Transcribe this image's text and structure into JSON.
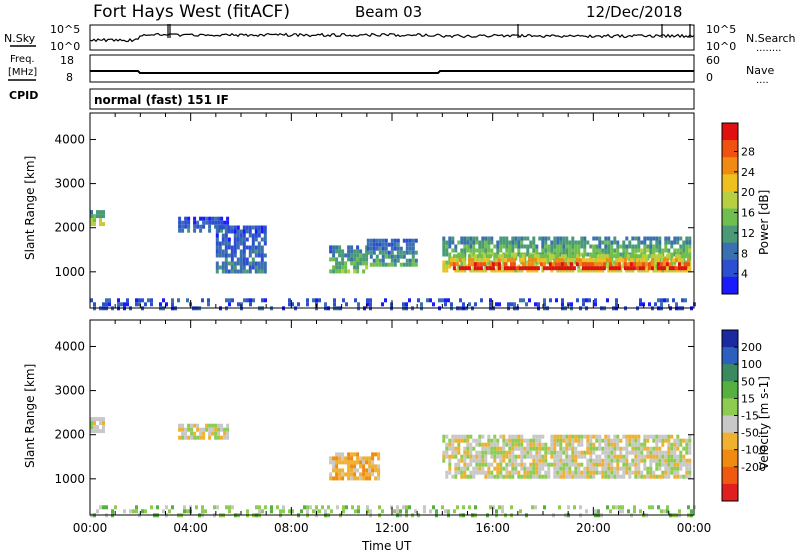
{
  "header": {
    "station": "Fort Hays West (fitACF)",
    "beam": "Beam 03",
    "date": "12/Dec/2018"
  },
  "top_panel": {
    "left_label": "N.Sky",
    "right_label": "N.Search",
    "right_marker": "........",
    "left_ticks": [
      "10^5",
      "10^0"
    ],
    "right_ticks": [
      "10^5",
      "10^0"
    ]
  },
  "freq_panel": {
    "left_label_1": "Freq.",
    "left_label_2": "[MHz]",
    "right_label": "Nave",
    "right_marker": "....",
    "left_ticks": [
      "18",
      "8"
    ],
    "right_ticks": [
      "60",
      "0"
    ]
  },
  "cpid": {
    "label": "CPID",
    "value": "normal (fast) 151 IF"
  },
  "chart_data": [
    {
      "type": "heatmap",
      "name": "power-panel",
      "title": "",
      "xlabel": "",
      "ylabel": "Slant Range [km]",
      "ylim": [
        180,
        4600
      ],
      "yticks": [
        "1000",
        "2000",
        "3000",
        "4000"
      ],
      "colorbar": {
        "label": "Power [dB]",
        "ticks": [
          "4",
          "8",
          "12",
          "16",
          "20",
          "24",
          "28"
        ],
        "colors": [
          "#1a1aff",
          "#2b4fd0",
          "#3a6fb0",
          "#4a9a78",
          "#6fbf50",
          "#b8d040",
          "#f0c020",
          "#f08a10",
          "#f05010",
          "#e01010"
        ]
      },
      "regions": [
        {
          "start_ut": 0.0,
          "end_ut": 0.5,
          "range_min": 2050,
          "range_max": 2400,
          "level": 5
        },
        {
          "start_ut": 3.5,
          "end_ut": 5.5,
          "range_min": 1950,
          "range_max": 2250,
          "level": 2
        },
        {
          "start_ut": 5.0,
          "end_ut": 7.0,
          "range_min": 1000,
          "range_max": 2050,
          "level": 2
        },
        {
          "start_ut": 9.5,
          "end_ut": 11.0,
          "range_min": 1000,
          "range_max": 1600,
          "level": 4
        },
        {
          "start_ut": 11.0,
          "end_ut": 13.0,
          "range_min": 1200,
          "range_max": 1750,
          "level": 3
        },
        {
          "start_ut": 14.0,
          "end_ut": 23.8,
          "range_min": 1050,
          "range_max": 1800,
          "level": 5
        },
        {
          "start_ut": 14.3,
          "end_ut": 23.8,
          "range_min": 1100,
          "range_max": 1400,
          "level": 9
        },
        {
          "start_ut": 0.0,
          "end_ut": 24.0,
          "range_min": 180,
          "range_max": 400,
          "level": 1
        }
      ]
    },
    {
      "type": "heatmap",
      "name": "velocity-panel",
      "title": "",
      "xlabel": "Time UT",
      "ylabel": "Slant Range [km]",
      "ylim": [
        180,
        4600
      ],
      "yticks": [
        "1000",
        "2000",
        "3000",
        "4000"
      ],
      "xticks": [
        "00:00",
        "04:00",
        "08:00",
        "12:00",
        "16:00",
        "20:00",
        "00:00"
      ],
      "xlim": [
        0,
        24
      ],
      "colorbar": {
        "label": "Velocity [m s-1]",
        "ticks": [
          "200",
          "100",
          "50",
          "15",
          "-15",
          "-50",
          "-100",
          "-200"
        ],
        "colors": [
          "#1a2aa0",
          "#2d5fc0",
          "#3a8a60",
          "#55b040",
          "#8ccc50",
          "#c8c8c8",
          "#f0b030",
          "#f08a10",
          "#f05a10",
          "#e02020"
        ]
      },
      "regions": [
        {
          "start_ut": 0.0,
          "end_ut": 0.5,
          "range_min": 2050,
          "range_max": 2400,
          "level": 5
        },
        {
          "start_ut": 3.5,
          "end_ut": 5.5,
          "range_min": 1950,
          "range_max": 2250,
          "level": 5
        },
        {
          "start_ut": 9.5,
          "end_ut": 11.5,
          "range_min": 1050,
          "range_max": 1600,
          "level": 6
        },
        {
          "start_ut": 14.0,
          "end_ut": 23.8,
          "range_min": 1050,
          "range_max": 2000,
          "level": 5
        },
        {
          "start_ut": 0.0,
          "end_ut": 24.0,
          "range_min": 180,
          "range_max": 400,
          "level": 4
        }
      ]
    }
  ]
}
